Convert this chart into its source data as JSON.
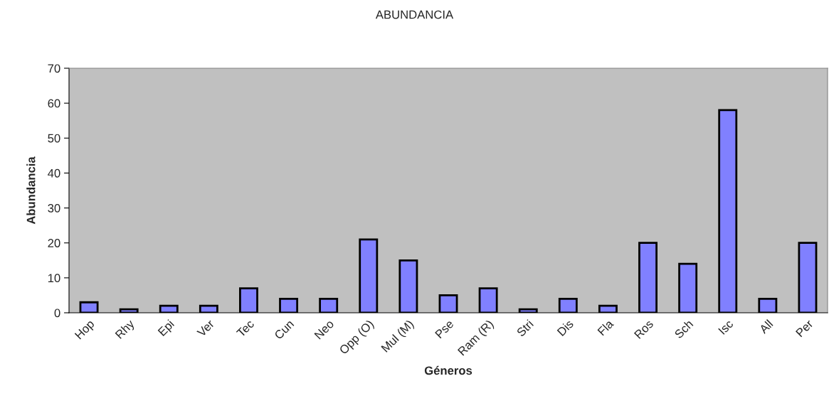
{
  "chart_data": {
    "type": "bar",
    "title": "ABUNDANCIA",
    "xlabel": "Géneros",
    "ylabel": "Abundancia",
    "categories": [
      "Hop",
      "Rhy",
      "Epi",
      "Ver",
      "Tec",
      "Cun",
      "Neo",
      "Opp (O)",
      "Mul (M)",
      "Pse",
      "Ram (R)",
      "Stri",
      "Dis",
      "Fla",
      "Ros",
      "Sch",
      "Isc",
      "All",
      "Per"
    ],
    "values": [
      3,
      1,
      2,
      2,
      7,
      4,
      4,
      21,
      15,
      5,
      7,
      1,
      4,
      2,
      20,
      14,
      58,
      4,
      20
    ],
    "color": "#8080ff",
    "ylim": [
      0,
      70
    ],
    "yticks": [
      0,
      10,
      20,
      30,
      40,
      50,
      60,
      70
    ],
    "grid": false,
    "legend": false
  }
}
